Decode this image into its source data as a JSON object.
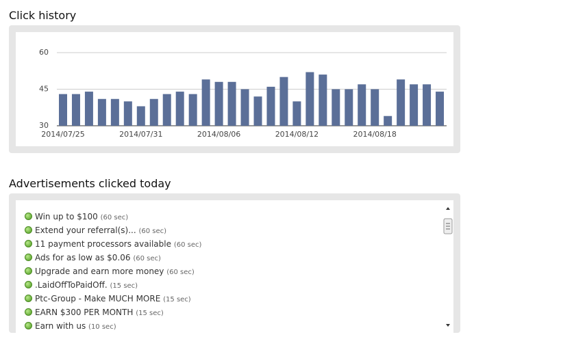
{
  "click_history": {
    "title": "Click history"
  },
  "chart_data": {
    "type": "bar",
    "categories": [
      "2014/07/25",
      null,
      null,
      null,
      null,
      null,
      "2014/07/31",
      null,
      null,
      null,
      null,
      null,
      "2014/08/06",
      null,
      null,
      null,
      null,
      null,
      "2014/08/12",
      null,
      null,
      null,
      null,
      null,
      "2014/08/18",
      null,
      null,
      null,
      null,
      null
    ],
    "values": [
      43,
      43,
      44,
      41,
      41,
      40,
      38,
      41,
      43,
      44,
      43,
      49,
      48,
      48,
      45,
      42,
      46,
      50,
      40,
      52,
      51,
      45,
      45,
      47,
      45,
      34,
      49,
      47,
      47,
      44
    ],
    "color": "#5b6f98",
    "ylim": [
      30,
      60
    ],
    "yticks": [
      30,
      45,
      60
    ],
    "grid": true
  },
  "ads": {
    "title": "Advertisements clicked today",
    "items": [
      {
        "name": "Win up to $100",
        "duration": "(60 sec)"
      },
      {
        "name": "Extend your referral(s)...",
        "duration": "(60 sec)"
      },
      {
        "name": "11 payment processors available",
        "duration": "(60 sec)"
      },
      {
        "name": "Ads for as low as $0.06",
        "duration": "(60 sec)"
      },
      {
        "name": "Upgrade and earn more money",
        "duration": "(60 sec)"
      },
      {
        "name": ".LaidOffToPaidOff.",
        "duration": "(15 sec)"
      },
      {
        "name": "Ptc-Group - Make MUCH MORE",
        "duration": "(15 sec)"
      },
      {
        "name": "EARN $300 PER MONTH",
        "duration": "(15 sec)"
      },
      {
        "name": "Earn with us",
        "duration": "(10 sec)"
      }
    ]
  }
}
